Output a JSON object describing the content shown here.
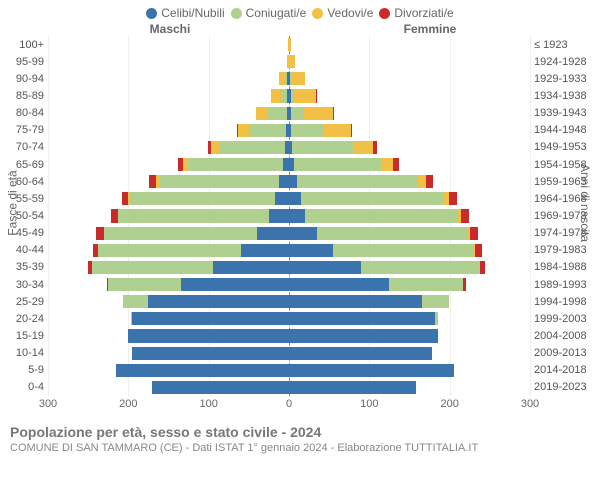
{
  "legend": [
    {
      "label": "Celibi/Nubili",
      "color": "#3b74ad"
    },
    {
      "label": "Coniugati/e",
      "color": "#b0d090"
    },
    {
      "label": "Vedovi/e",
      "color": "#f3c046"
    },
    {
      "label": "Divorziati/e",
      "color": "#c92a2a"
    }
  ],
  "gender": {
    "m": "Maschi",
    "f": "Femmine"
  },
  "axis_left_label": "Fasce di età",
  "axis_right_label": "Anni di nascita",
  "title": "Popolazione per età, sesso e stato civile - 2024",
  "subtitle": "COMUNE DI SAN TAMMARO (CE) - Dati ISTAT 1° gennaio 2024 - Elaborazione TUTTITALIA.IT",
  "x": {
    "max": 300,
    "ticks": [
      300,
      200,
      100,
      0,
      100,
      200,
      300
    ]
  },
  "age_labels": [
    "100+",
    "95-99",
    "90-94",
    "85-89",
    "80-84",
    "75-79",
    "70-74",
    "65-69",
    "60-64",
    "55-59",
    "50-54",
    "45-49",
    "40-44",
    "35-39",
    "30-34",
    "25-29",
    "20-24",
    "15-19",
    "10-14",
    "5-9",
    "0-4"
  ],
  "birth_labels": [
    "≤ 1923",
    "1924-1928",
    "1929-1933",
    "1934-1938",
    "1939-1943",
    "1944-1948",
    "1949-1953",
    "1954-1958",
    "1959-1963",
    "1964-1968",
    "1969-1973",
    "1974-1978",
    "1979-1983",
    "1984-1988",
    "1989-1993",
    "1994-1998",
    "1999-2003",
    "2004-2008",
    "2009-2013",
    "2014-2018",
    "2019-2023"
  ],
  "pyramid": [
    {
      "m": [
        0,
        0,
        1,
        0
      ],
      "f": [
        0,
        0,
        3,
        0
      ]
    },
    {
      "m": [
        0,
        0,
        2,
        0
      ],
      "f": [
        0,
        0,
        8,
        0
      ]
    },
    {
      "m": [
        2,
        2,
        8,
        0
      ],
      "f": [
        1,
        1,
        18,
        0
      ]
    },
    {
      "m": [
        2,
        8,
        12,
        0
      ],
      "f": [
        2,
        4,
        28,
        1
      ]
    },
    {
      "m": [
        3,
        24,
        14,
        0
      ],
      "f": [
        2,
        15,
        38,
        1
      ]
    },
    {
      "m": [
        4,
        46,
        14,
        1
      ],
      "f": [
        3,
        40,
        34,
        2
      ]
    },
    {
      "m": [
        5,
        82,
        10,
        4
      ],
      "f": [
        4,
        76,
        24,
        5
      ]
    },
    {
      "m": [
        8,
        118,
        6,
        6
      ],
      "f": [
        6,
        108,
        16,
        7
      ]
    },
    {
      "m": [
        12,
        150,
        4,
        8
      ],
      "f": [
        10,
        150,
        10,
        9
      ]
    },
    {
      "m": [
        18,
        180,
        2,
        8
      ],
      "f": [
        15,
        178,
        6,
        10
      ]
    },
    {
      "m": [
        25,
        188,
        0,
        8
      ],
      "f": [
        20,
        190,
        4,
        10
      ]
    },
    {
      "m": [
        40,
        190,
        0,
        10
      ],
      "f": [
        35,
        188,
        2,
        10
      ]
    },
    {
      "m": [
        60,
        178,
        0,
        6
      ],
      "f": [
        55,
        175,
        2,
        8
      ]
    },
    {
      "m": [
        95,
        150,
        0,
        5
      ],
      "f": [
        90,
        148,
        0,
        6
      ]
    },
    {
      "m": [
        135,
        90,
        0,
        2
      ],
      "f": [
        125,
        92,
        0,
        3
      ]
    },
    {
      "m": [
        175,
        32,
        0,
        0
      ],
      "f": [
        165,
        34,
        0,
        0
      ]
    },
    {
      "m": [
        195,
        2,
        0,
        0
      ],
      "f": [
        182,
        3,
        0,
        0
      ]
    },
    {
      "m": [
        200,
        0,
        0,
        0
      ],
      "f": [
        185,
        0,
        0,
        0
      ]
    },
    {
      "m": [
        195,
        0,
        0,
        0
      ],
      "f": [
        178,
        0,
        0,
        0
      ]
    },
    {
      "m": [
        215,
        0,
        0,
        0
      ],
      "f": [
        205,
        0,
        0,
        0
      ]
    },
    {
      "m": [
        170,
        0,
        0,
        0
      ],
      "f": [
        158,
        0,
        0,
        0
      ]
    }
  ]
}
